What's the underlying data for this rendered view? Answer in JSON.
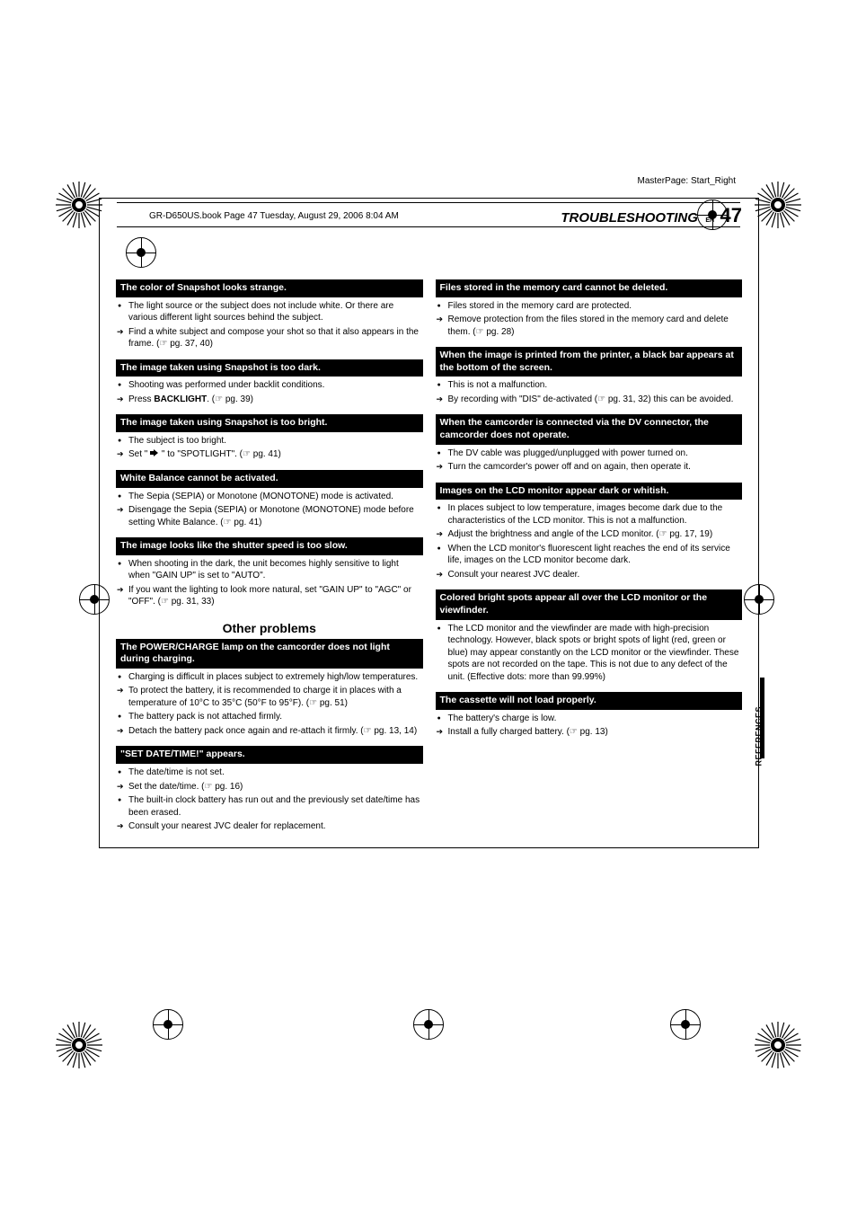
{
  "meta": {
    "masterpage": "MasterPage: Start_Right",
    "bookline": "GR-D650US.book  Page 47  Tuesday, August 29, 2006  8:04 AM"
  },
  "header": {
    "section": "TROUBLESHOOTING",
    "en": "EN",
    "page": "47"
  },
  "sidebar": "REFERENCES",
  "col1": {
    "items": [
      {
        "title": "The color of Snapshot looks strange.",
        "lines": [
          {
            "t": "bullet",
            "text": "The light source or the subject does not include white. Or there are various different light sources behind the subject."
          },
          {
            "t": "arrow",
            "text": "Find a white subject and compose your shot so that it also appears in the frame. (☞ pg. 37, 40)"
          }
        ]
      },
      {
        "title": "The image taken using Snapshot is too dark.",
        "lines": [
          {
            "t": "bullet",
            "text": "Shooting was performed under backlit conditions."
          },
          {
            "t": "arrow",
            "html": "Press <b>BACKLIGHT</b>. (☞ pg. 39)"
          }
        ]
      },
      {
        "title": "The image taken using Snapshot is too bright.",
        "lines": [
          {
            "t": "bullet",
            "text": "The subject is too bright."
          },
          {
            "t": "arrow",
            "html": "Set \" <span class='spotlight-icon'></span> \" to \"SPOTLIGHT\". (☞ pg. 41)"
          }
        ]
      },
      {
        "title": "White Balance cannot be activated.",
        "lines": [
          {
            "t": "bullet",
            "text": "The Sepia (SEPIA) or Monotone (MONOTONE) mode is activated."
          },
          {
            "t": "arrow",
            "text": "Disengage the Sepia (SEPIA) or Monotone (MONOTONE) mode before setting White Balance. (☞ pg. 41)"
          }
        ]
      },
      {
        "title": "The image looks like the shutter speed is too slow.",
        "lines": [
          {
            "t": "bullet",
            "text": "When shooting in the dark, the unit becomes highly sensitive to light when \"GAIN UP\" is set to \"AUTO\"."
          },
          {
            "t": "arrow",
            "text": "If you want the lighting to look more natural, set \"GAIN UP\" to \"AGC\" or \"OFF\". (☞ pg. 31, 33)"
          }
        ]
      }
    ],
    "section_break": "Other problems",
    "items2": [
      {
        "title": "The POWER/CHARGE lamp on the camcorder does not light during charging.",
        "lines": [
          {
            "t": "bullet",
            "text": "Charging is difficult in places subject to extremely high/low temperatures."
          },
          {
            "t": "arrow",
            "text": "To protect the battery, it is recommended to charge it in places with a temperature of 10°C to 35°C (50°F to 95°F). (☞ pg. 51)"
          },
          {
            "t": "bullet",
            "text": "The battery pack is not attached firmly."
          },
          {
            "t": "arrow",
            "text": "Detach the battery pack once again and re-attach it firmly. (☞ pg. 13, 14)"
          }
        ]
      },
      {
        "title": "\"SET DATE/TIME!\" appears.",
        "lines": [
          {
            "t": "bullet",
            "text": "The date/time is not set."
          },
          {
            "t": "arrow",
            "text": "Set the date/time. (☞ pg. 16)"
          },
          {
            "t": "bullet",
            "text": "The built-in clock battery has run out and the previously set date/time has been erased."
          },
          {
            "t": "arrow",
            "text": "Consult your nearest JVC dealer for replacement."
          }
        ]
      }
    ]
  },
  "col2": {
    "items": [
      {
        "title": "Files stored in the memory card cannot be deleted.",
        "lines": [
          {
            "t": "bullet",
            "text": "Files stored in the memory card are protected."
          },
          {
            "t": "arrow",
            "text": "Remove protection from the files stored in the memory card and delete them. (☞ pg. 28)"
          }
        ]
      },
      {
        "title": "When the image is printed from the printer, a black bar appears at the bottom of the screen.",
        "lines": [
          {
            "t": "bullet",
            "text": "This is not a malfunction."
          },
          {
            "t": "arrow",
            "text": "By recording with \"DIS\" de-activated (☞ pg. 31, 32) this can be avoided."
          }
        ]
      },
      {
        "title": "When the camcorder is connected via the DV connector, the camcorder does not operate.",
        "lines": [
          {
            "t": "bullet",
            "text": "The DV cable was plugged/unplugged with power turned on."
          },
          {
            "t": "arrow",
            "text": "Turn the camcorder's power off and on again, then operate it."
          }
        ]
      },
      {
        "title": "Images on the LCD monitor appear dark or whitish.",
        "lines": [
          {
            "t": "bullet",
            "text": "In places subject to low temperature, images become dark due to the characteristics of the LCD monitor. This is not a malfunction."
          },
          {
            "t": "arrow",
            "text": "Adjust the brightness and angle of the LCD monitor. (☞ pg. 17, 19)"
          },
          {
            "t": "bullet",
            "text": "When the LCD monitor's fluorescent light reaches the end of its service life, images on the LCD monitor become dark."
          },
          {
            "t": "arrow",
            "text": "Consult your nearest JVC dealer."
          }
        ]
      },
      {
        "title": "Colored bright spots appear all over the LCD monitor or the viewfinder.",
        "lines": [
          {
            "t": "bullet",
            "text": "The LCD monitor and the viewfinder are made with high-precision technology. However, black spots or bright spots of light (red, green or blue) may appear constantly on the LCD monitor or the viewfinder. These spots are not recorded on the tape. This is not due to any defect of the unit. (Effective dots: more than 99.99%)"
          }
        ]
      },
      {
        "title": "The cassette will not load properly.",
        "lines": [
          {
            "t": "bullet",
            "text": "The battery's charge is low."
          },
          {
            "t": "arrow",
            "text": "Install a fully charged battery. (☞ pg. 13)"
          }
        ]
      }
    ]
  }
}
